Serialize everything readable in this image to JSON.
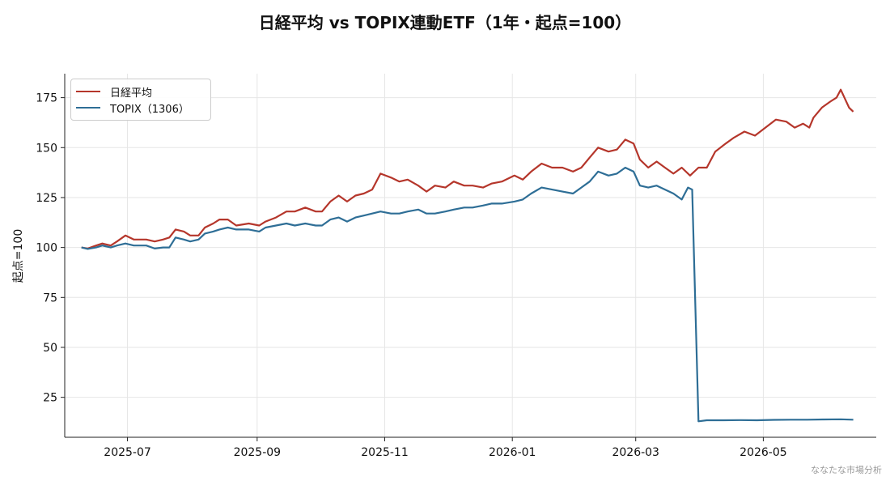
{
  "chart_data": {
    "type": "line",
    "title": "日経平均 vs TOPIX連動ETF（1年・起点=100）",
    "xlabel": "",
    "ylabel": "起点=100",
    "x_range": [
      "2025-06-01",
      "2026-06-24"
    ],
    "ylim": [
      5,
      187
    ],
    "yticks": [
      25,
      50,
      75,
      100,
      125,
      150,
      175
    ],
    "xticks": [
      "2025-07",
      "2025-09",
      "2025-11",
      "2026-01",
      "2026-03",
      "2026-05"
    ],
    "grid": true,
    "legend_position": "top-left",
    "series": [
      {
        "name": "日経平均",
        "color": "#b5362b",
        "points": [
          [
            "2025-06-09",
            100
          ],
          [
            "2025-06-12",
            99.5
          ],
          [
            "2025-06-16",
            101
          ],
          [
            "2025-06-19",
            102
          ],
          [
            "2025-06-23",
            101
          ],
          [
            "2025-06-26",
            103
          ],
          [
            "2025-06-30",
            106
          ],
          [
            "2025-07-04",
            104
          ],
          [
            "2025-07-10",
            104
          ],
          [
            "2025-07-14",
            103
          ],
          [
            "2025-07-18",
            104
          ],
          [
            "2025-07-21",
            105
          ],
          [
            "2025-07-24",
            109
          ],
          [
            "2025-07-28",
            108
          ],
          [
            "2025-07-31",
            106
          ],
          [
            "2025-08-04",
            106
          ],
          [
            "2025-08-07",
            110
          ],
          [
            "2025-08-11",
            112
          ],
          [
            "2025-08-14",
            114
          ],
          [
            "2025-08-18",
            114
          ],
          [
            "2025-08-22",
            111
          ],
          [
            "2025-08-28",
            112
          ],
          [
            "2025-09-02",
            111
          ],
          [
            "2025-09-05",
            113
          ],
          [
            "2025-09-10",
            115
          ],
          [
            "2025-09-15",
            118
          ],
          [
            "2025-09-19",
            118
          ],
          [
            "2025-09-24",
            120
          ],
          [
            "2025-09-29",
            118
          ],
          [
            "2025-10-02",
            118
          ],
          [
            "2025-10-06",
            123
          ],
          [
            "2025-10-10",
            126
          ],
          [
            "2025-10-14",
            123
          ],
          [
            "2025-10-18",
            126
          ],
          [
            "2025-10-22",
            127
          ],
          [
            "2025-10-26",
            129
          ],
          [
            "2025-10-30",
            137
          ],
          [
            "2025-11-04",
            135
          ],
          [
            "2025-11-08",
            133
          ],
          [
            "2025-11-12",
            134
          ],
          [
            "2025-11-17",
            131
          ],
          [
            "2025-11-21",
            128
          ],
          [
            "2025-11-25",
            131
          ],
          [
            "2025-11-30",
            130
          ],
          [
            "2025-12-04",
            133
          ],
          [
            "2025-12-09",
            131
          ],
          [
            "2025-12-13",
            131
          ],
          [
            "2025-12-18",
            130
          ],
          [
            "2025-12-22",
            132
          ],
          [
            "2025-12-27",
            133
          ],
          [
            "2026-01-02",
            136
          ],
          [
            "2026-01-06",
            134
          ],
          [
            "2026-01-10",
            138
          ],
          [
            "2026-01-15",
            142
          ],
          [
            "2026-01-20",
            140
          ],
          [
            "2026-01-25",
            140
          ],
          [
            "2026-01-30",
            138
          ],
          [
            "2026-02-03",
            140
          ],
          [
            "2026-02-07",
            145
          ],
          [
            "2026-02-11",
            150
          ],
          [
            "2026-02-16",
            148
          ],
          [
            "2026-02-20",
            149
          ],
          [
            "2026-02-24",
            154
          ],
          [
            "2026-02-28",
            152
          ],
          [
            "2026-03-03",
            144
          ],
          [
            "2026-03-07",
            140
          ],
          [
            "2026-03-11",
            143
          ],
          [
            "2026-03-15",
            140
          ],
          [
            "2026-03-19",
            137
          ],
          [
            "2026-03-23",
            140
          ],
          [
            "2026-03-27",
            136
          ],
          [
            "2026-03-31",
            140
          ],
          [
            "2026-04-04",
            140
          ],
          [
            "2026-04-08",
            148
          ],
          [
            "2026-04-13",
            152
          ],
          [
            "2026-04-17",
            155
          ],
          [
            "2026-04-22",
            158
          ],
          [
            "2026-04-27",
            156
          ],
          [
            "2026-05-02",
            160
          ],
          [
            "2026-05-07",
            164
          ],
          [
            "2026-05-12",
            163
          ],
          [
            "2026-05-16",
            160
          ],
          [
            "2026-05-20",
            162
          ],
          [
            "2026-05-23",
            160
          ],
          [
            "2026-05-25",
            165
          ],
          [
            "2026-05-29",
            170
          ],
          [
            "2026-06-02",
            173
          ],
          [
            "2026-06-05",
            175
          ],
          [
            "2026-06-07",
            179
          ],
          [
            "2026-06-11",
            170
          ],
          [
            "2026-06-13",
            168
          ]
        ]
      },
      {
        "name": "TOPIX（1306）",
        "color": "#2e6e96",
        "points": [
          [
            "2025-06-09",
            100
          ],
          [
            "2025-06-12",
            99.3
          ],
          [
            "2025-06-16",
            100
          ],
          [
            "2025-06-19",
            101
          ],
          [
            "2025-06-23",
            100
          ],
          [
            "2025-06-26",
            101
          ],
          [
            "2025-06-30",
            102
          ],
          [
            "2025-07-04",
            101
          ],
          [
            "2025-07-10",
            101
          ],
          [
            "2025-07-14",
            99.5
          ],
          [
            "2025-07-18",
            100
          ],
          [
            "2025-07-21",
            100
          ],
          [
            "2025-07-24",
            105
          ],
          [
            "2025-07-28",
            104
          ],
          [
            "2025-07-31",
            103
          ],
          [
            "2025-08-04",
            104
          ],
          [
            "2025-08-07",
            107
          ],
          [
            "2025-08-11",
            108
          ],
          [
            "2025-08-14",
            109
          ],
          [
            "2025-08-18",
            110
          ],
          [
            "2025-08-22",
            109
          ],
          [
            "2025-08-28",
            109
          ],
          [
            "2025-09-02",
            108
          ],
          [
            "2025-09-05",
            110
          ],
          [
            "2025-09-10",
            111
          ],
          [
            "2025-09-15",
            112
          ],
          [
            "2025-09-19",
            111
          ],
          [
            "2025-09-24",
            112
          ],
          [
            "2025-09-29",
            111
          ],
          [
            "2025-10-02",
            111
          ],
          [
            "2025-10-06",
            114
          ],
          [
            "2025-10-10",
            115
          ],
          [
            "2025-10-14",
            113
          ],
          [
            "2025-10-18",
            115
          ],
          [
            "2025-10-22",
            116
          ],
          [
            "2025-10-26",
            117
          ],
          [
            "2025-10-30",
            118
          ],
          [
            "2025-11-04",
            117
          ],
          [
            "2025-11-08",
            117
          ],
          [
            "2025-11-12",
            118
          ],
          [
            "2025-11-17",
            119
          ],
          [
            "2025-11-21",
            117
          ],
          [
            "2025-11-25",
            117
          ],
          [
            "2025-11-30",
            118
          ],
          [
            "2025-12-04",
            119
          ],
          [
            "2025-12-09",
            120
          ],
          [
            "2025-12-13",
            120
          ],
          [
            "2025-12-18",
            121
          ],
          [
            "2025-12-22",
            122
          ],
          [
            "2025-12-27",
            122
          ],
          [
            "2026-01-02",
            123
          ],
          [
            "2026-01-06",
            124
          ],
          [
            "2026-01-10",
            127
          ],
          [
            "2026-01-15",
            130
          ],
          [
            "2026-01-20",
            129
          ],
          [
            "2026-01-25",
            128
          ],
          [
            "2026-01-30",
            127
          ],
          [
            "2026-02-03",
            130
          ],
          [
            "2026-02-07",
            133
          ],
          [
            "2026-02-11",
            138
          ],
          [
            "2026-02-16",
            136
          ],
          [
            "2026-02-20",
            137
          ],
          [
            "2026-02-24",
            140
          ],
          [
            "2026-02-28",
            138
          ],
          [
            "2026-03-03",
            131
          ],
          [
            "2026-03-07",
            130
          ],
          [
            "2026-03-11",
            131
          ],
          [
            "2026-03-15",
            129
          ],
          [
            "2026-03-19",
            127
          ],
          [
            "2026-03-23",
            124
          ],
          [
            "2026-03-26",
            130
          ],
          [
            "2026-03-28",
            129
          ],
          [
            "2026-03-31",
            13
          ],
          [
            "2026-04-04",
            13.5
          ],
          [
            "2026-04-12",
            13.5
          ],
          [
            "2026-04-20",
            13.6
          ],
          [
            "2026-04-28",
            13.5
          ],
          [
            "2026-05-06",
            13.7
          ],
          [
            "2026-05-14",
            13.8
          ],
          [
            "2026-05-22",
            13.8
          ],
          [
            "2026-05-30",
            13.9
          ],
          [
            "2026-06-07",
            14
          ],
          [
            "2026-06-13",
            13.8
          ]
        ]
      }
    ]
  },
  "watermark": "ななたな市場分析"
}
